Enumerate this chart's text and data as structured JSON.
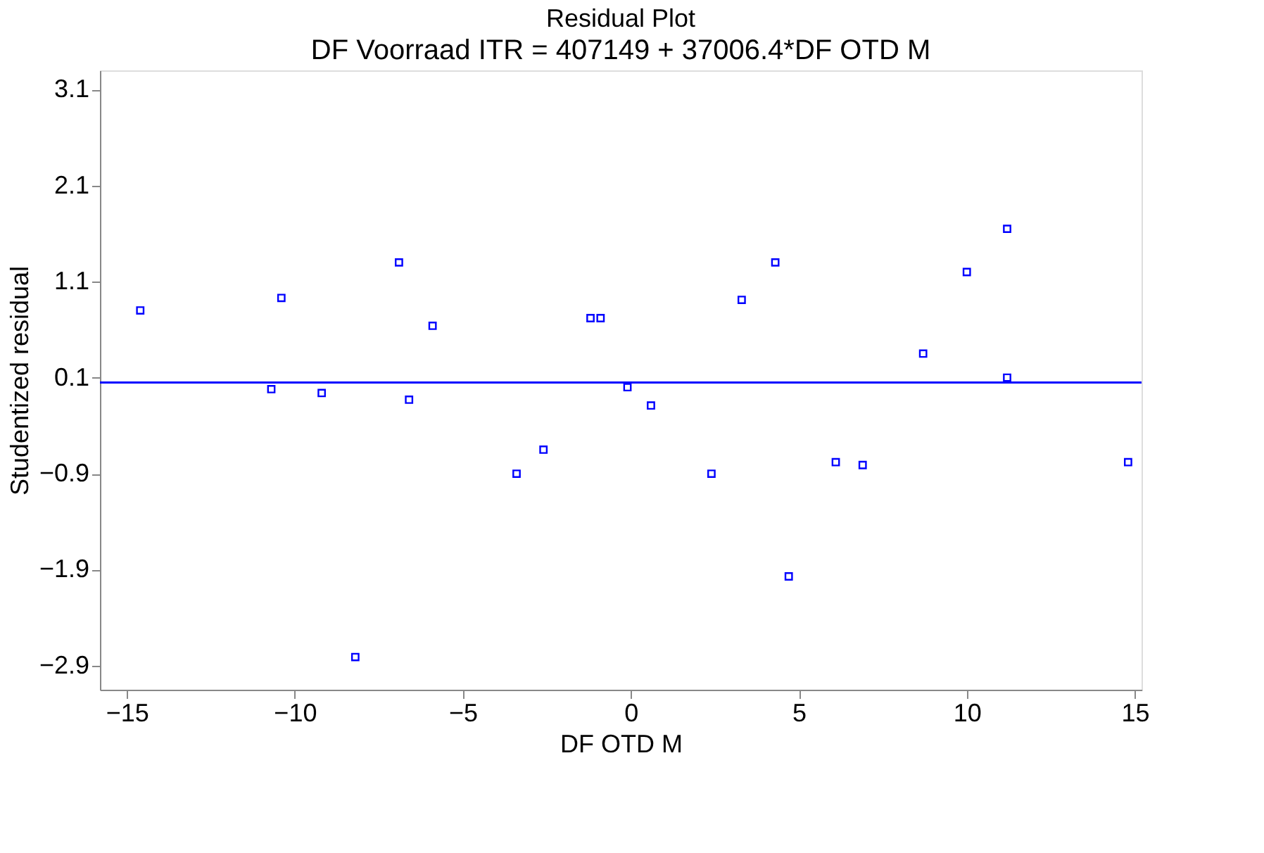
{
  "chart_data": {
    "type": "scatter",
    "title": "Residual Plot",
    "subtitle": "DF Voorraad ITR = 407149 + 37006.4*DF OTD M",
    "xlabel": "DF OTD M",
    "ylabel": "Studentized residual",
    "x": [
      -14.6,
      -10.7,
      -10.4,
      -9.2,
      -8.2,
      -6.9,
      -6.6,
      -5.9,
      -3.4,
      -2.6,
      -1.2,
      -0.9,
      -0.1,
      0.6,
      2.4,
      3.3,
      4.3,
      4.7,
      6.1,
      6.9,
      8.7,
      10.0,
      11.2,
      11.2,
      14.8
    ],
    "series": [
      {
        "color": "#0000ff",
        "values": [
          0.8,
          -0.02,
          0.93,
          -0.06,
          -2.81,
          1.3,
          -0.13,
          0.64,
          -0.9,
          -0.65,
          0.72,
          0.72,
          0.0,
          -0.19,
          -0.9,
          0.91,
          1.3,
          -1.97,
          -0.78,
          -0.81,
          0.35,
          1.2,
          1.65,
          0.1,
          -0.78
        ]
      }
    ],
    "xlim": [
      -15.8,
      15.2
    ],
    "ylim": [
      -3.15,
      3.3
    ],
    "xticks": [
      -15,
      -10,
      -5,
      0,
      5,
      10,
      15
    ],
    "yticks": [
      -2.9,
      -1.9,
      -0.9,
      0.1,
      1.1,
      2.1,
      3.1
    ],
    "ref_lines": [
      {
        "axis": "y",
        "value": 0.05,
        "color": "#0000ff"
      }
    ],
    "marker": "square",
    "grid": false
  }
}
